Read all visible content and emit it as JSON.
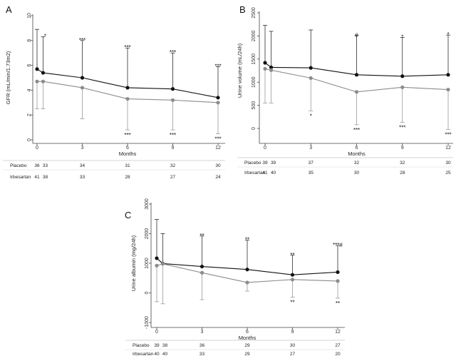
{
  "colors": {
    "placebo": "#111111",
    "irbesartan": "#8c8c8c",
    "axis": "#444444"
  },
  "chart_data": [
    {
      "panel": "A",
      "type": "line",
      "xlabel": "Months",
      "ylabel": "GFR (mL/min/1.73m2)",
      "xlim": [
        0,
        12
      ],
      "ylim": [
        0,
        10
      ],
      "x_ticks": [
        0,
        3,
        6,
        9,
        12
      ],
      "y_ticks": [
        0,
        2,
        4,
        6,
        8,
        10
      ],
      "series": [
        {
          "key": "placebo",
          "x": [
            0,
            0.4,
            3,
            6,
            9,
            12
          ],
          "y": [
            5.7,
            5.4,
            5.0,
            4.2,
            4.1,
            3.4
          ],
          "err_low": [
            2.5,
            2.5,
            1.7,
            0.8,
            0.8,
            0.5
          ],
          "err_high": [
            8.9,
            8.3,
            8.0,
            7.4,
            7.0,
            5.9
          ]
        },
        {
          "key": "irbesartan",
          "x": [
            0,
            0.4,
            3,
            6,
            9,
            12
          ],
          "y": [
            4.7,
            4.7,
            4.2,
            3.3,
            3.2,
            3.0
          ],
          "err_low": [
            2.5,
            2.5,
            1.7,
            0.8,
            0.8,
            0.5
          ],
          "err_high": [
            8.9,
            8.3,
            8.0,
            7.4,
            7.0,
            5.9
          ]
        }
      ],
      "annotations_above": [
        {
          "x": 0.4,
          "text": "*"
        },
        {
          "x": 3,
          "text": "***"
        },
        {
          "x": 6,
          "text": "***"
        },
        {
          "x": 9,
          "text": "***"
        },
        {
          "x": 12,
          "text": "***"
        }
      ],
      "annotations_below": [
        {
          "x": 6,
          "text": "***"
        },
        {
          "x": 9,
          "text": "***"
        },
        {
          "x": 12,
          "text": "***"
        }
      ],
      "n_at_risk": {
        "columns": [
          0,
          0.4,
          3,
          6,
          9,
          12
        ],
        "rows": [
          {
            "label": "Placebo",
            "values": [
              "36",
              "33",
              "34",
              "31",
              "32",
              "30"
            ]
          },
          {
            "label": "Irbesartan",
            "values": [
              "41",
              "38",
              "33",
              "28",
              "27",
              "24"
            ]
          }
        ]
      }
    },
    {
      "panel": "B",
      "type": "line",
      "xlabel": "Months",
      "ylabel": "Urine volume (mL/24h)",
      "xlim": [
        0,
        12
      ],
      "ylim": [
        0,
        2500
      ],
      "x_ticks": [
        0,
        3,
        6,
        9,
        12
      ],
      "y_ticks": [
        0,
        500,
        1000,
        1500,
        2000,
        2500
      ],
      "series": [
        {
          "key": "placebo",
          "x": [
            0,
            0.4,
            3,
            6,
            9,
            12
          ],
          "y": [
            1420,
            1320,
            1310,
            1160,
            1130,
            1160
          ],
          "err_low": [
            550,
            550,
            380,
            80,
            130,
            -20
          ],
          "err_high": [
            2230,
            2100,
            2130,
            2010,
            1970,
            2020
          ]
        },
        {
          "key": "irbesartan",
          "x": [
            0,
            0.4,
            3,
            6,
            9,
            12
          ],
          "y": [
            1290,
            1260,
            1090,
            790,
            890,
            840
          ],
          "err_low": [
            550,
            550,
            380,
            80,
            130,
            -20
          ],
          "err_high": [
            2230,
            2100,
            2130,
            2010,
            1970,
            2020
          ]
        }
      ],
      "annotations_above": [
        {
          "x": 6,
          "text": "#"
        },
        {
          "x": 9,
          "text": "*"
        },
        {
          "x": 12,
          "text": "*"
        }
      ],
      "annotations_below": [
        {
          "x": 3,
          "text": "*"
        },
        {
          "x": 6,
          "text": "***"
        },
        {
          "x": 9,
          "text": "***"
        },
        {
          "x": 12,
          "text": "***"
        }
      ],
      "n_at_risk": {
        "columns": [
          0,
          0.4,
          3,
          6,
          9,
          12
        ],
        "rows": [
          {
            "label": "Placebo",
            "values": [
              "39",
              "39",
              "37",
              "32",
              "32",
              "30"
            ]
          },
          {
            "label": "Irbesartan",
            "values": [
              "41",
              "40",
              "35",
              "30",
              "28",
              "25"
            ]
          }
        ]
      }
    },
    {
      "panel": "C",
      "type": "line",
      "xlabel": "Months",
      "ylabel": "Urine albumin (mg/24h)",
      "xlim": [
        0,
        12
      ],
      "ylim": [
        -1000,
        3000
      ],
      "x_ticks": [
        0,
        3,
        6,
        9,
        12
      ],
      "y_ticks": [
        -1000,
        0,
        1000,
        2000,
        3000
      ],
      "series": [
        {
          "key": "placebo",
          "x": [
            0,
            0.4,
            3,
            6,
            9,
            12
          ],
          "y": [
            1170,
            990,
            890,
            790,
            610,
            700
          ],
          "err_low": [
            -300,
            -370,
            -230,
            60,
            -150,
            -180
          ],
          "err_high": [
            2480,
            2000,
            1920,
            1780,
            1270,
            1600
          ]
        },
        {
          "key": "irbesartan",
          "x": [
            0,
            0.4,
            3,
            6,
            9,
            12
          ],
          "y": [
            920,
            980,
            680,
            350,
            450,
            400
          ],
          "err_low": [
            -300,
            -370,
            -230,
            60,
            -150,
            -180
          ],
          "err_high": [
            2480,
            2000,
            1920,
            1780,
            1270,
            1600
          ]
        }
      ],
      "annotations_above": [
        {
          "x": 3,
          "text": "**"
        },
        {
          "x": 6,
          "text": "**"
        },
        {
          "x": 9,
          "text": "**"
        },
        {
          "x": 12,
          "text": "***#"
        }
      ],
      "annotations_below": [
        {
          "x": 9,
          "text": "**"
        },
        {
          "x": 12,
          "text": "**"
        }
      ],
      "n_at_risk": {
        "columns": [
          0,
          0.4,
          3,
          6,
          9,
          12
        ],
        "rows": [
          {
            "label": "Placebo",
            "values": [
              "39",
              "38",
              "36",
              "29",
              "30",
              "27"
            ]
          },
          {
            "label": "Irbesartan",
            "values": [
              "40",
              "40",
              "33",
              "29",
              "27",
              "20"
            ]
          }
        ]
      }
    }
  ]
}
